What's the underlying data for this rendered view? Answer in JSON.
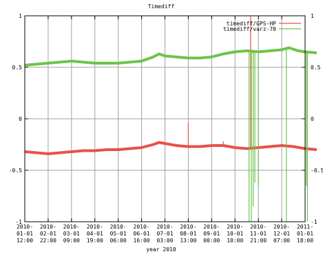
{
  "chart_data": {
    "type": "line",
    "title": "Timediff",
    "xlabel": "year 2010",
    "ylabel": "",
    "ylim": [
      -1,
      1
    ],
    "y_ticks": [
      "1",
      "0.5",
      "0",
      "-0.5",
      "-1"
    ],
    "y_ticks_right": [
      "1",
      "0.5",
      "0",
      "-0.5",
      "-1"
    ],
    "x_ticks": [
      [
        "2010-",
        "01-01",
        "12:00"
      ],
      [
        "2010-",
        "02-01",
        "22:00"
      ],
      [
        "2010-",
        "03-01",
        "09:00"
      ],
      [
        "2010-",
        "04-01",
        "19:00"
      ],
      [
        "2010-",
        "05-01",
        "06:00"
      ],
      [
        "2010-",
        "06-01",
        "16:00"
      ],
      [
        "2010-",
        "07-01",
        "03:00"
      ],
      [
        "2010-",
        "08-01",
        "13:00"
      ],
      [
        "2010-",
        "09-01",
        "00:00"
      ],
      [
        "2010-",
        "10-01",
        "10:00"
      ],
      [
        "2010-",
        "11-01",
        "21:00"
      ],
      [
        "2010-",
        "12-01",
        "07:00"
      ],
      [
        "2011-",
        "01-01",
        "18:00"
      ]
    ],
    "grid": true,
    "legend_position": "top-right",
    "series": [
      {
        "name": "timediff/GPS-HP",
        "color": "#e8504a",
        "points": [
          [
            0.0,
            -0.32
          ],
          [
            0.5,
            -0.33
          ],
          [
            1.0,
            -0.34
          ],
          [
            1.5,
            -0.33
          ],
          [
            2.0,
            -0.32
          ],
          [
            2.5,
            -0.31
          ],
          [
            3.0,
            -0.31
          ],
          [
            3.5,
            -0.3
          ],
          [
            4.0,
            -0.3
          ],
          [
            4.5,
            -0.29
          ],
          [
            5.0,
            -0.28
          ],
          [
            5.5,
            -0.25
          ],
          [
            5.75,
            -0.23
          ],
          [
            6.0,
            -0.24
          ],
          [
            6.5,
            -0.26
          ],
          [
            7.0,
            -0.27
          ],
          [
            7.5,
            -0.27
          ],
          [
            8.0,
            -0.26
          ],
          [
            8.5,
            -0.26
          ],
          [
            9.0,
            -0.28
          ],
          [
            9.5,
            -0.29
          ],
          [
            10.0,
            -0.28
          ],
          [
            10.5,
            -0.27
          ],
          [
            11.0,
            -0.26
          ],
          [
            11.5,
            -0.27
          ],
          [
            12.0,
            -0.29
          ],
          [
            12.5,
            -0.3
          ]
        ],
        "spikes": [
          [
            7.0,
            -0.27,
            -0.04
          ],
          [
            8.5,
            -0.26,
            -0.22
          ],
          [
            9.67,
            -0.29,
            1.0
          ]
        ]
      },
      {
        "name": "timediff/varz-70",
        "color": "#6cc44a",
        "points": [
          [
            0.0,
            0.52
          ],
          [
            0.5,
            0.53
          ],
          [
            1.0,
            0.54
          ],
          [
            1.5,
            0.55
          ],
          [
            2.0,
            0.56
          ],
          [
            2.5,
            0.55
          ],
          [
            3.0,
            0.54
          ],
          [
            3.5,
            0.54
          ],
          [
            4.0,
            0.54
          ],
          [
            4.5,
            0.55
          ],
          [
            5.0,
            0.56
          ],
          [
            5.5,
            0.6
          ],
          [
            5.75,
            0.63
          ],
          [
            6.0,
            0.61
          ],
          [
            6.5,
            0.6
          ],
          [
            7.0,
            0.59
          ],
          [
            7.5,
            0.59
          ],
          [
            8.0,
            0.6
          ],
          [
            8.5,
            0.63
          ],
          [
            9.0,
            0.65
          ],
          [
            9.5,
            0.66
          ],
          [
            10.0,
            0.65
          ],
          [
            10.5,
            0.66
          ],
          [
            11.0,
            0.67
          ],
          [
            11.3,
            0.69
          ],
          [
            11.7,
            0.66
          ],
          [
            12.0,
            0.65
          ],
          [
            12.5,
            0.64
          ]
        ],
        "spikes": [
          [
            9.6,
            0.66,
            -1.0
          ],
          [
            9.7,
            0.66,
            -1.0
          ],
          [
            9.78,
            0.66,
            -0.85
          ],
          [
            9.85,
            0.66,
            -0.62
          ],
          [
            10.0,
            0.65,
            -0.65
          ],
          [
            11.2,
            0.68,
            -1.0
          ],
          [
            12.05,
            0.65,
            -0.65
          ],
          [
            12.1,
            0.65,
            -1.0
          ]
        ]
      }
    ]
  }
}
